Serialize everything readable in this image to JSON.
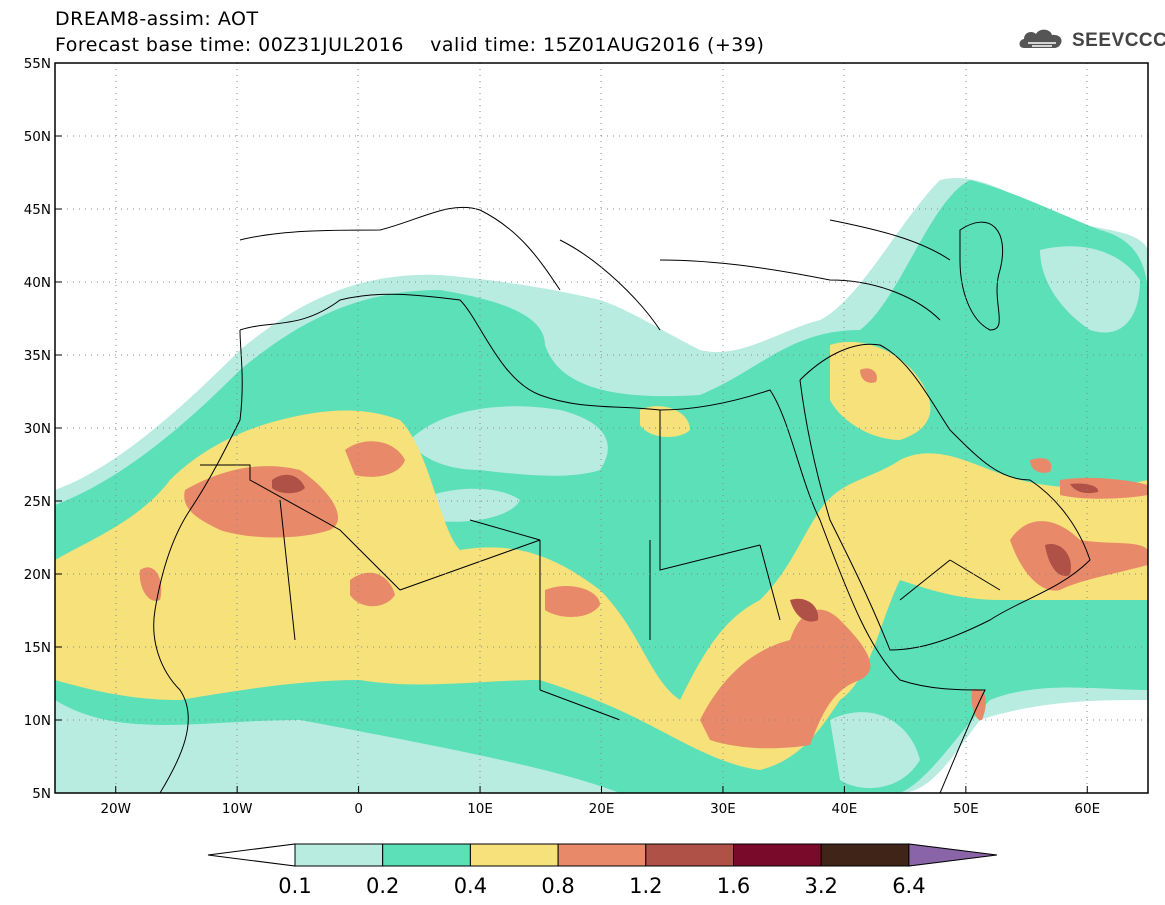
{
  "header": {
    "title": "DREAM8-assim: AOT",
    "base_time_label": "Forecast base time: 00Z31JUL2016",
    "valid_time_label": "valid time: 15Z01AUG2016 (+39)"
  },
  "logo": {
    "text": "SEEVCCC",
    "icon": "cloud-icon"
  },
  "map": {
    "lon_range": [
      -25,
      65
    ],
    "lat_range": [
      5,
      55
    ],
    "lat_ticks": [
      {
        "lat": 55,
        "label": "55N"
      },
      {
        "lat": 50,
        "label": "50N"
      },
      {
        "lat": 45,
        "label": "45N"
      },
      {
        "lat": 40,
        "label": "40N"
      },
      {
        "lat": 35,
        "label": "35N"
      },
      {
        "lat": 30,
        "label": "30N"
      },
      {
        "lat": 25,
        "label": "25N"
      },
      {
        "lat": 20,
        "label": "20N"
      },
      {
        "lat": 15,
        "label": "15N"
      },
      {
        "lat": 10,
        "label": "10N"
      },
      {
        "lat": 5,
        "label": "5N"
      }
    ],
    "lon_ticks": [
      {
        "lon": -20,
        "label": "20W"
      },
      {
        "lon": -10,
        "label": "10W"
      },
      {
        "lon": 0,
        "label": "0"
      },
      {
        "lon": 10,
        "label": "10E"
      },
      {
        "lon": 20,
        "label": "20E"
      },
      {
        "lon": 30,
        "label": "30E"
      },
      {
        "lon": 40,
        "label": "40E"
      },
      {
        "lon": 50,
        "label": "50E"
      },
      {
        "lon": 60,
        "label": "60E"
      }
    ],
    "grid": true
  },
  "colorbar": {
    "levels": [
      "0.1",
      "0.2",
      "0.4",
      "0.8",
      "1.2",
      "1.6",
      "3.2",
      "6.4"
    ],
    "colors": {
      "below": "#ffffff",
      "c1": "#b8ece0",
      "c2": "#5ce0b8",
      "c3": "#f6e17a",
      "c4": "#e88a6a",
      "c5": "#b05148",
      "c6": "#7a0a2a",
      "c7": "#402418",
      "above": "#8a64a8"
    }
  }
}
